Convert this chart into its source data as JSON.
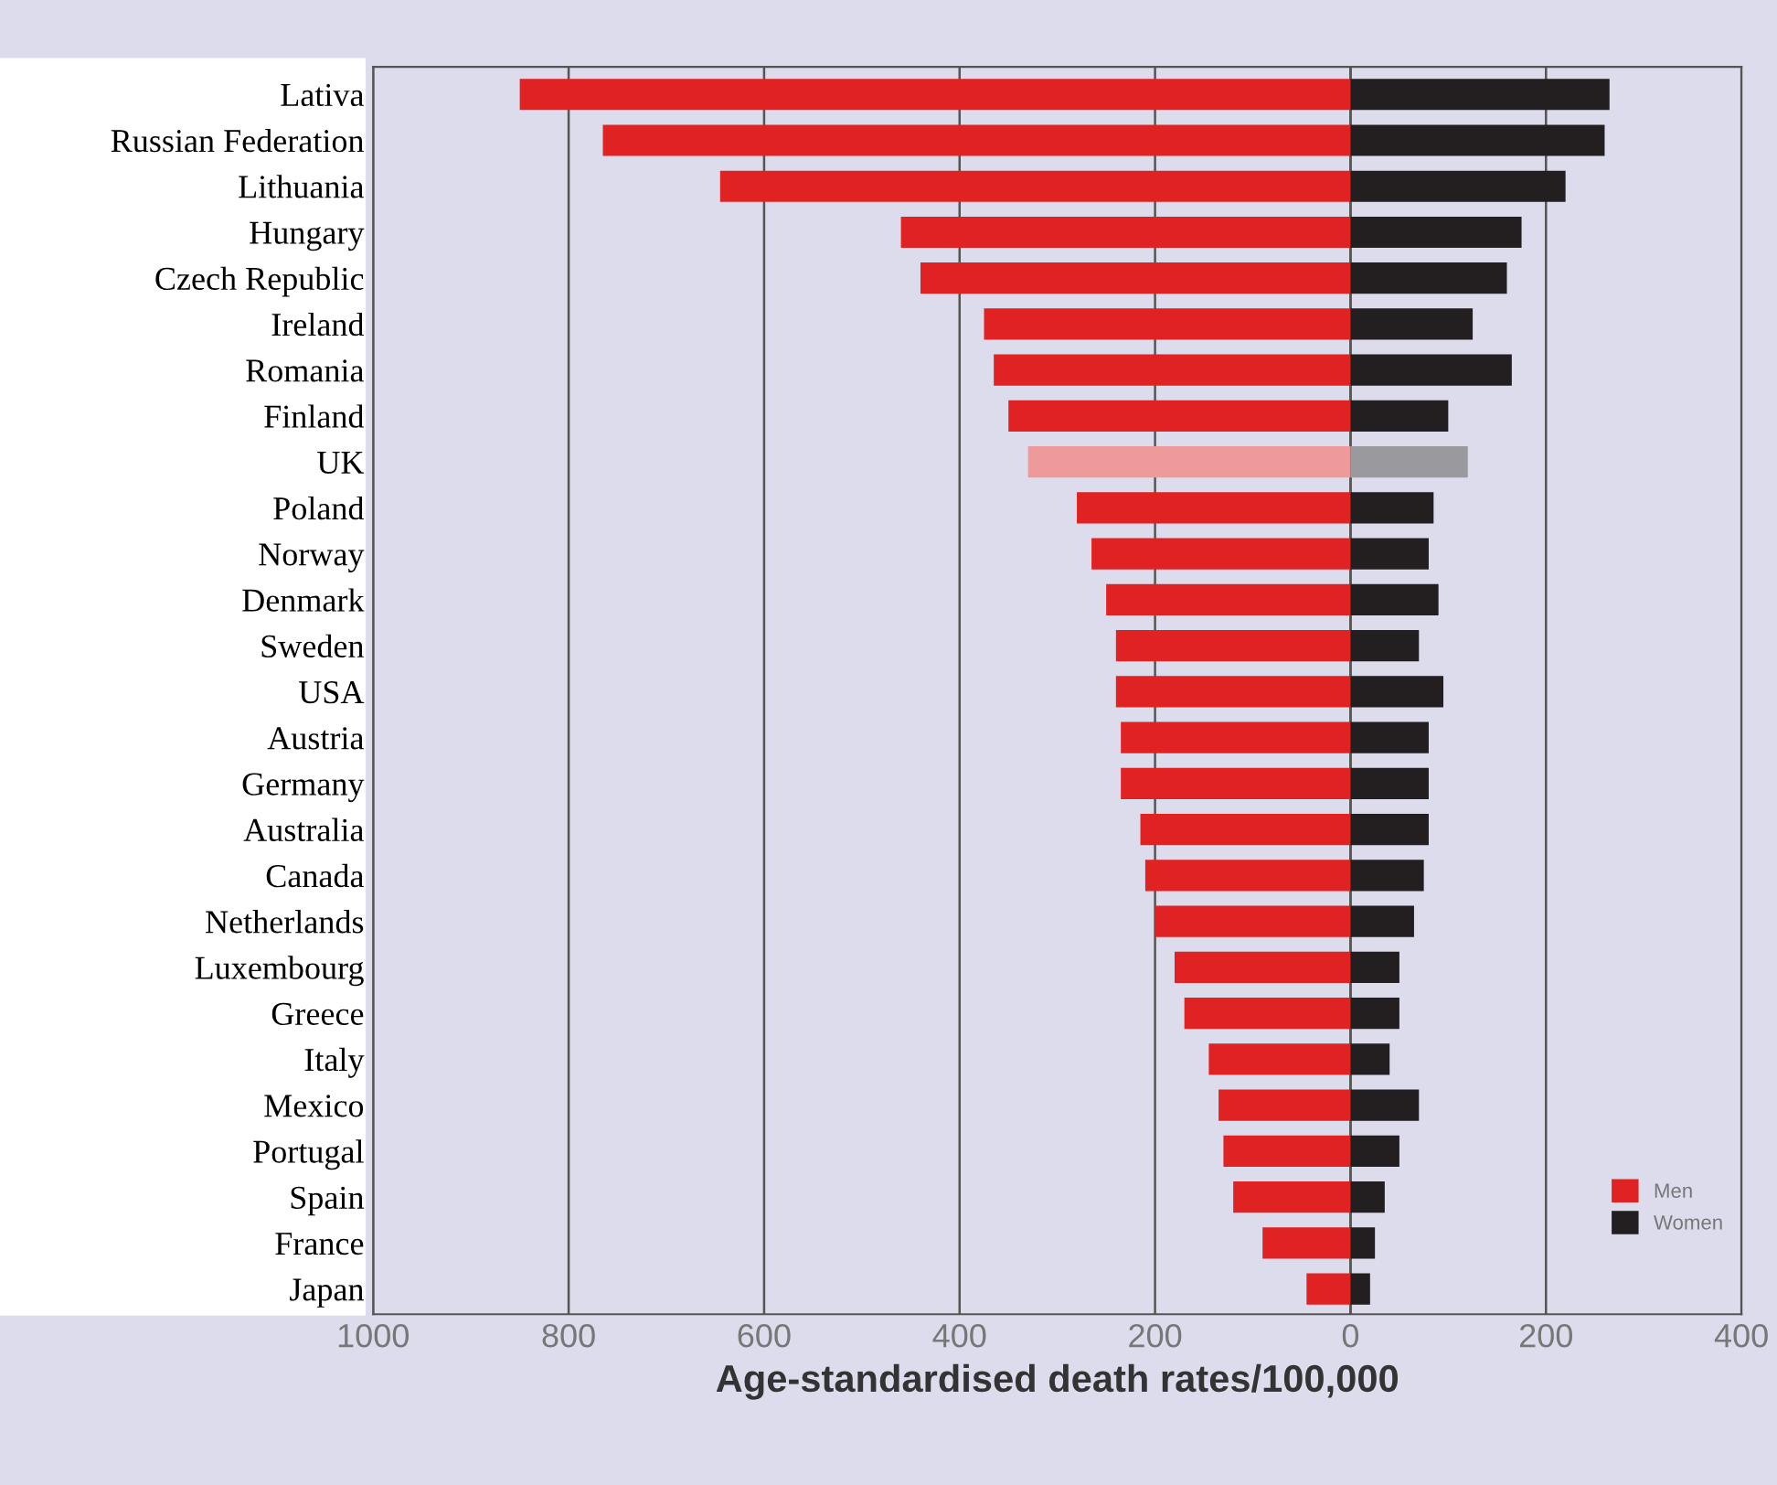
{
  "chart_data": {
    "type": "bar",
    "orientation": "horizontal",
    "xlabel": "Age-standardised death rates/100,000",
    "categories": [
      "Lativa",
      "Russian Federation",
      "Lithuania",
      "Hungary",
      "Czech Republic",
      "Ireland",
      "Romania",
      "Finland",
      "UK",
      "Poland",
      "Norway",
      "Denmark",
      "Sweden",
      "USA",
      "Austria",
      "Germany",
      "Australia",
      "Canada",
      "Netherlands",
      "Luxembourg",
      "Greece",
      "Italy",
      "Mexico",
      "Portugal",
      "Spain",
      "France",
      "Japan"
    ],
    "series": [
      {
        "name": "Men",
        "color": "#e02222",
        "colors": [
          "#e02222",
          "#e02222",
          "#e02222",
          "#e02222",
          "#e02222",
          "#e02222",
          "#e02222",
          "#e02222",
          "#ef9a9a",
          "#e02222",
          "#e02222",
          "#e02222",
          "#e02222",
          "#e02222",
          "#e02222",
          "#e02222",
          "#e02222",
          "#e02222",
          "#e02222",
          "#e02222",
          "#e02222",
          "#e02222",
          "#e02222",
          "#e02222",
          "#e02222",
          "#e02222",
          "#e02222"
        ],
        "values": [
          -850,
          -765,
          -645,
          -460,
          -440,
          -375,
          -365,
          -350,
          -330,
          -280,
          -265,
          -250,
          -240,
          -240,
          -235,
          -235,
          -215,
          -210,
          -200,
          -180,
          -170,
          -145,
          -135,
          -130,
          -120,
          -90,
          -45
        ]
      },
      {
        "name": "Women",
        "color": "#231f20",
        "colors": [
          "#231f20",
          "#231f20",
          "#231f20",
          "#231f20",
          "#231f20",
          "#231f20",
          "#231f20",
          "#231f20",
          "#9a9a9e",
          "#231f20",
          "#231f20",
          "#231f20",
          "#231f20",
          "#231f20",
          "#231f20",
          "#231f20",
          "#231f20",
          "#231f20",
          "#231f20",
          "#231f20",
          "#231f20",
          "#231f20",
          "#231f20",
          "#231f20",
          "#231f20",
          "#231f20",
          "#231f20"
        ],
        "values": [
          265,
          260,
          220,
          175,
          160,
          125,
          165,
          100,
          120,
          85,
          80,
          90,
          70,
          95,
          80,
          80,
          80,
          75,
          65,
          50,
          50,
          40,
          70,
          50,
          35,
          25,
          20
        ]
      }
    ],
    "xlim": [
      -1000,
      400
    ],
    "xticks": [
      {
        "value": -1000,
        "label": "1000"
      },
      {
        "value": -800,
        "label": "800"
      },
      {
        "value": -600,
        "label": "600"
      },
      {
        "value": -400,
        "label": "400"
      },
      {
        "value": -200,
        "label": "200"
      },
      0,
      200,
      400
    ],
    "grid": "x",
    "legend": "bottom right",
    "stacked": true
  }
}
